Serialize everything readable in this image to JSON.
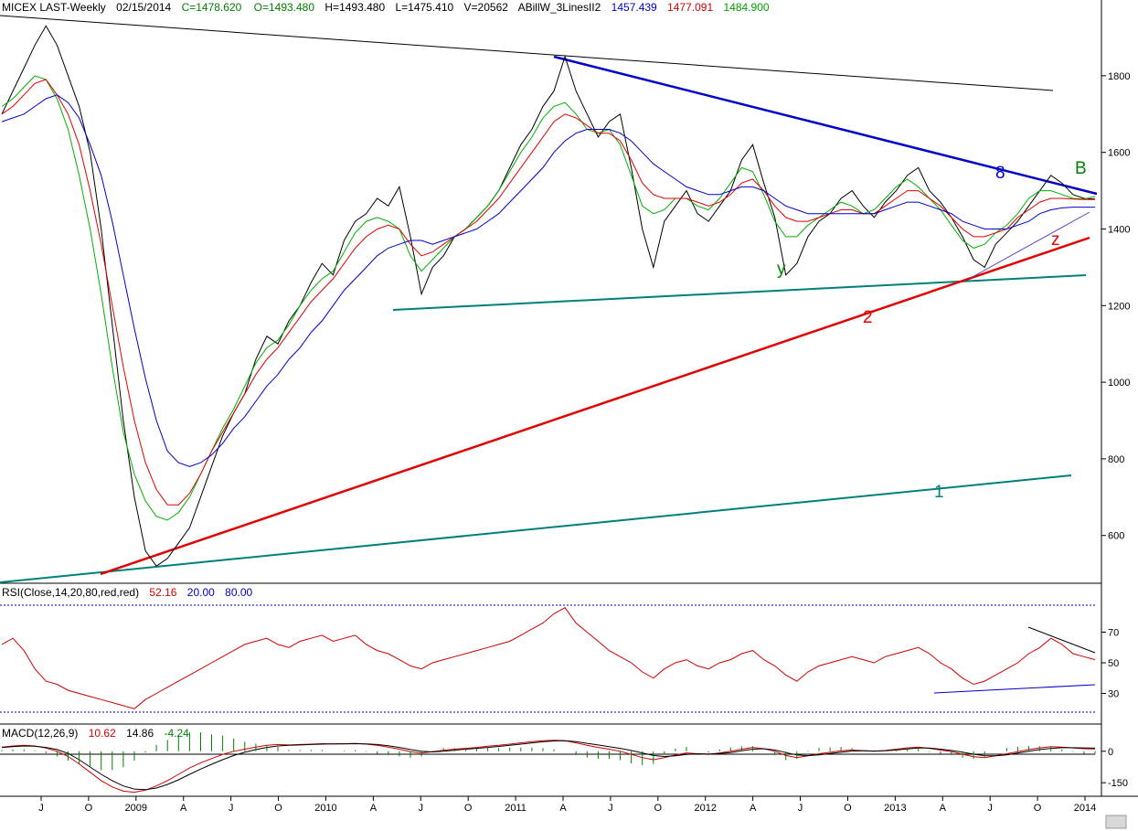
{
  "header": {
    "symbol": "MICEX LAST-Weekly",
    "date": "02/15/2014",
    "close": "C=1478.620",
    "open": "O=1493.480",
    "high": "H=1493.480",
    "low": "L=1475.410",
    "volume": "V=20562",
    "indicator": "ABillW_3LinesII2",
    "ind_val_blue": "1457.439",
    "ind_val_red": "1477.091",
    "ind_val_green": "1484.900"
  },
  "rsi_header": {
    "label": "RSI(Close,14,20,80,red,red)",
    "value": "52.16",
    "low": "20.00",
    "high": "80.00"
  },
  "macd_header": {
    "label": "MACD(12,26,9)",
    "macd": "10.62",
    "signal": "14.86",
    "hist": "-4.24"
  },
  "annotations": {
    "one": "1",
    "two": "2",
    "eight": "8",
    "b": "B",
    "y": "y",
    "z": "z"
  },
  "colors": {
    "price_line": "#000000",
    "blue_line": "#0000c8",
    "red_line": "#e00000",
    "green_line": "#00b000",
    "teal_line": "#00807a",
    "rsi_line": "#d00000",
    "macd_hist": "#008000"
  },
  "chart_data": [
    {
      "type": "line",
      "title": "MICEX LAST-Weekly",
      "ylim": [
        480,
        1950
      ],
      "y_ticks": [
        "1800",
        "1600",
        "1400",
        "1200",
        "1000",
        "800",
        "600"
      ],
      "x_ticks": [
        "J",
        "O",
        "2009",
        "A",
        "J",
        "O",
        "2010",
        "A",
        "J",
        "O",
        "2011",
        "A",
        "J",
        "O",
        "2012",
        "A",
        "J",
        "O",
        "2013",
        "A",
        "J",
        "O",
        "2014"
      ],
      "series": [
        {
          "values": [
            1700,
            1760,
            1820,
            1880,
            1930,
            1880,
            1800,
            1720,
            1600,
            1400,
            1150,
            900,
            700,
            560,
            520,
            540,
            580,
            620,
            700,
            780,
            860,
            920,
            970,
            1060,
            1120,
            1100,
            1160,
            1200,
            1260,
            1310,
            1280,
            1370,
            1420,
            1440,
            1480,
            1460,
            1510,
            1380,
            1230,
            1300,
            1330,
            1380,
            1400,
            1430,
            1460,
            1500,
            1560,
            1620,
            1660,
            1720,
            1760,
            1850,
            1760,
            1700,
            1640,
            1680,
            1700,
            1560,
            1400,
            1300,
            1420,
            1460,
            1500,
            1440,
            1420,
            1460,
            1500,
            1580,
            1620,
            1520,
            1430,
            1280,
            1310,
            1380,
            1420,
            1440,
            1480,
            1500,
            1460,
            1430,
            1470,
            1500,
            1540,
            1560,
            1500,
            1470,
            1430,
            1380,
            1320,
            1300,
            1360,
            1390,
            1420,
            1460,
            1500,
            1540,
            1520,
            1490,
            1480,
            1478
          ]
        },
        {
          "values": [
            1720,
            1740,
            1770,
            1800,
            1790,
            1740,
            1660,
            1540,
            1400,
            1230,
            1040,
            870,
            760,
            690,
            650,
            640,
            660,
            700,
            760,
            820,
            880,
            930,
            990,
            1050,
            1090,
            1110,
            1150,
            1200,
            1240,
            1270,
            1290,
            1340,
            1390,
            1420,
            1430,
            1420,
            1400,
            1330,
            1290,
            1320,
            1350,
            1380,
            1400,
            1430,
            1460,
            1500,
            1550,
            1600,
            1640,
            1690,
            1720,
            1730,
            1700,
            1660,
            1650,
            1660,
            1620,
            1540,
            1460,
            1440,
            1450,
            1480,
            1480,
            1460,
            1450,
            1480,
            1520,
            1560,
            1550,
            1490,
            1420,
            1380,
            1380,
            1410,
            1430,
            1450,
            1470,
            1460,
            1440,
            1450,
            1480,
            1510,
            1530,
            1510,
            1480,
            1450,
            1410,
            1370,
            1350,
            1360,
            1390,
            1410,
            1440,
            1480,
            1500,
            1500,
            1490,
            1480,
            1478,
            1485
          ]
        },
        {
          "values": [
            1700,
            1720,
            1750,
            1780,
            1790,
            1750,
            1700,
            1620,
            1500,
            1360,
            1200,
            1040,
            900,
            790,
            720,
            680,
            680,
            710,
            760,
            820,
            870,
            920,
            970,
            1020,
            1060,
            1090,
            1130,
            1170,
            1210,
            1240,
            1270,
            1310,
            1350,
            1380,
            1400,
            1410,
            1400,
            1360,
            1330,
            1340,
            1360,
            1380,
            1400,
            1420,
            1450,
            1480,
            1520,
            1560,
            1600,
            1640,
            1680,
            1700,
            1690,
            1670,
            1650,
            1650,
            1630,
            1580,
            1520,
            1490,
            1480,
            1480,
            1480,
            1470,
            1460,
            1470,
            1490,
            1520,
            1530,
            1500,
            1460,
            1430,
            1420,
            1420,
            1430,
            1440,
            1450,
            1450,
            1440,
            1440,
            1460,
            1480,
            1500,
            1500,
            1480,
            1460,
            1430,
            1400,
            1380,
            1380,
            1390,
            1400,
            1430,
            1450,
            1470,
            1480,
            1480,
            1478,
            1477,
            1477
          ]
        },
        {
          "values": [
            1680,
            1690,
            1700,
            1720,
            1740,
            1750,
            1730,
            1690,
            1620,
            1540,
            1420,
            1280,
            1140,
            1010,
            900,
            820,
            790,
            780,
            790,
            810,
            840,
            880,
            910,
            950,
            990,
            1020,
            1060,
            1090,
            1130,
            1160,
            1200,
            1240,
            1270,
            1300,
            1330,
            1350,
            1360,
            1370,
            1370,
            1360,
            1370,
            1380,
            1390,
            1400,
            1420,
            1440,
            1470,
            1500,
            1530,
            1560,
            1600,
            1630,
            1650,
            1660,
            1660,
            1660,
            1650,
            1630,
            1600,
            1570,
            1550,
            1530,
            1510,
            1500,
            1490,
            1490,
            1500,
            1510,
            1510,
            1500,
            1480,
            1460,
            1450,
            1440,
            1440,
            1440,
            1440,
            1440,
            1440,
            1440,
            1450,
            1460,
            1470,
            1470,
            1460,
            1450,
            1440,
            1420,
            1410,
            1400,
            1400,
            1400,
            1410,
            1420,
            1440,
            1450,
            1455,
            1457,
            1457,
            1457
          ]
        }
      ]
    },
    {
      "type": "line",
      "title": "RSI(Close,14,20,80,red,red)",
      "ylim": [
        10,
        90
      ],
      "y_ticks": [
        "70",
        "50",
        "30"
      ],
      "series": [
        {
          "values": [
            62,
            66,
            58,
            46,
            38,
            36,
            32,
            30,
            28,
            26,
            24,
            22,
            20,
            26,
            30,
            34,
            38,
            42,
            46,
            50,
            54,
            58,
            62,
            64,
            66,
            62,
            60,
            64,
            66,
            68,
            64,
            66,
            68,
            62,
            58,
            56,
            52,
            48,
            46,
            50,
            52,
            54,
            56,
            58,
            60,
            62,
            64,
            68,
            72,
            76,
            82,
            86,
            76,
            70,
            64,
            58,
            54,
            50,
            44,
            40,
            46,
            50,
            52,
            48,
            46,
            50,
            52,
            56,
            58,
            52,
            48,
            42,
            38,
            44,
            48,
            50,
            52,
            54,
            52,
            50,
            54,
            56,
            58,
            60,
            56,
            50,
            46,
            40,
            36,
            38,
            42,
            46,
            50,
            56,
            60,
            66,
            62,
            56,
            54,
            52
          ]
        }
      ]
    },
    {
      "type": "line",
      "title": "MACD(12,26,9)",
      "ylim": [
        -210,
        60
      ],
      "y_ticks": [
        "0",
        "-150"
      ],
      "series": [
        {
          "values": [
            20,
            25,
            28,
            25,
            15,
            0,
            -25,
            -60,
            -100,
            -140,
            -170,
            -190,
            -195,
            -185,
            -165,
            -140,
            -110,
            -80,
            -55,
            -35,
            -15,
            0,
            10,
            20,
            28,
            32,
            30,
            32,
            34,
            36,
            35,
            36,
            38,
            34,
            28,
            20,
            10,
            -2,
            -8,
            -2,
            5,
            10,
            14,
            18,
            24,
            28,
            34,
            40,
            46,
            50,
            52,
            50,
            40,
            28,
            18,
            10,
            0,
            -15,
            -30,
            -40,
            -30,
            -18,
            -8,
            -12,
            -15,
            -8,
            0,
            10,
            18,
            12,
            0,
            -20,
            -30,
            -22,
            -12,
            -5,
            2,
            6,
            3,
            0,
            4,
            10,
            16,
            20,
            14,
            6,
            -2,
            -14,
            -26,
            -30,
            -22,
            -12,
            -2,
            8,
            16,
            22,
            20,
            16,
            12,
            10.62
          ]
        },
        {
          "values": [
            18,
            22,
            25,
            24,
            18,
            8,
            -10,
            -40,
            -75,
            -110,
            -140,
            -165,
            -180,
            -183,
            -175,
            -158,
            -136,
            -110,
            -85,
            -62,
            -40,
            -20,
            -5,
            8,
            18,
            25,
            28,
            30,
            32,
            34,
            35,
            35,
            36,
            35,
            32,
            26,
            18,
            8,
            0,
            -3,
            0,
            5,
            10,
            14,
            18,
            23,
            28,
            34,
            40,
            45,
            49,
            50,
            46,
            38,
            30,
            22,
            14,
            4,
            -8,
            -20,
            -25,
            -22,
            -15,
            -12,
            -13,
            -11,
            -6,
            2,
            10,
            12,
            6,
            -6,
            -18,
            -21,
            -17,
            -11,
            -5,
            1,
            2,
            1,
            2,
            6,
            11,
            15,
            15,
            10,
            4,
            -4,
            -14,
            -21,
            -22,
            -17,
            -9,
            0,
            8,
            14,
            17,
            17,
            16,
            14.86
          ]
        }
      ]
    }
  ]
}
